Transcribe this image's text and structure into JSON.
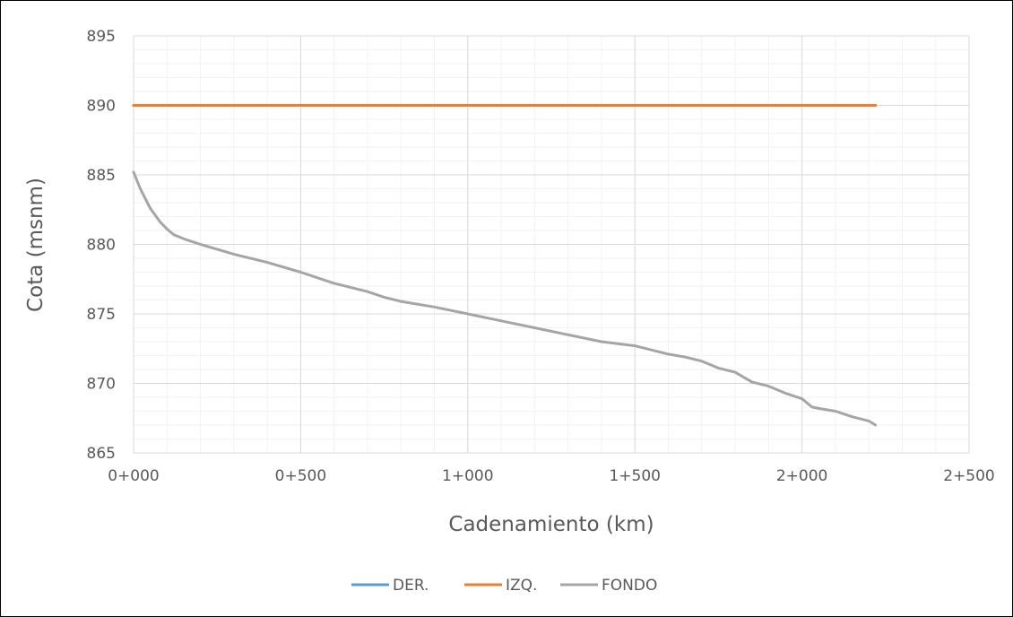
{
  "chart_data": {
    "type": "line",
    "title": "",
    "xlabel": "Cadenamiento (km)",
    "ylabel": "Cota (msnm)",
    "xlim": [
      0,
      2500
    ],
    "ylim": [
      865,
      895
    ],
    "x_ticks": [
      {
        "value": 0,
        "label": "0+000"
      },
      {
        "value": 500,
        "label": "0+500"
      },
      {
        "value": 1000,
        "label": "1+000"
      },
      {
        "value": 1500,
        "label": "1+500"
      },
      {
        "value": 2000,
        "label": "2+000"
      },
      {
        "value": 2500,
        "label": "2+500"
      }
    ],
    "y_ticks": [
      {
        "value": 865,
        "label": "865"
      },
      {
        "value": 870,
        "label": "870"
      },
      {
        "value": 875,
        "label": "875"
      },
      {
        "value": 880,
        "label": "880"
      },
      {
        "value": 885,
        "label": "885"
      },
      {
        "value": 890,
        "label": "890"
      },
      {
        "value": 895,
        "label": "895"
      }
    ],
    "minor_x_step": 100,
    "minor_y_step": 1,
    "grid": true,
    "legend_position": "bottom",
    "series": [
      {
        "name": "DER.",
        "color": "#5B9BD5",
        "x": [
          0,
          2220
        ],
        "y": [
          890,
          890
        ]
      },
      {
        "name": "IZQ.",
        "color": "#ED7D31",
        "x": [
          0,
          2220
        ],
        "y": [
          890,
          890
        ]
      },
      {
        "name": "FONDO",
        "color": "#A5A5A5",
        "x": [
          0,
          20,
          50,
          80,
          100,
          120,
          150,
          200,
          300,
          400,
          500,
          600,
          700,
          750,
          800,
          900,
          1000,
          1100,
          1200,
          1300,
          1400,
          1500,
          1600,
          1650,
          1700,
          1750,
          1800,
          1850,
          1900,
          1950,
          2000,
          2030,
          2050,
          2100,
          2150,
          2200,
          2220
        ],
        "y": [
          885.2,
          884.0,
          882.6,
          881.6,
          881.1,
          880.7,
          880.4,
          880.0,
          879.3,
          878.7,
          878.0,
          877.2,
          876.6,
          876.2,
          875.9,
          875.5,
          875.0,
          874.5,
          874.0,
          873.5,
          873.0,
          872.7,
          872.1,
          871.9,
          871.6,
          871.1,
          870.8,
          870.1,
          869.8,
          869.3,
          868.9,
          868.3,
          868.2,
          868.0,
          867.6,
          867.3,
          867.0
        ]
      }
    ]
  }
}
